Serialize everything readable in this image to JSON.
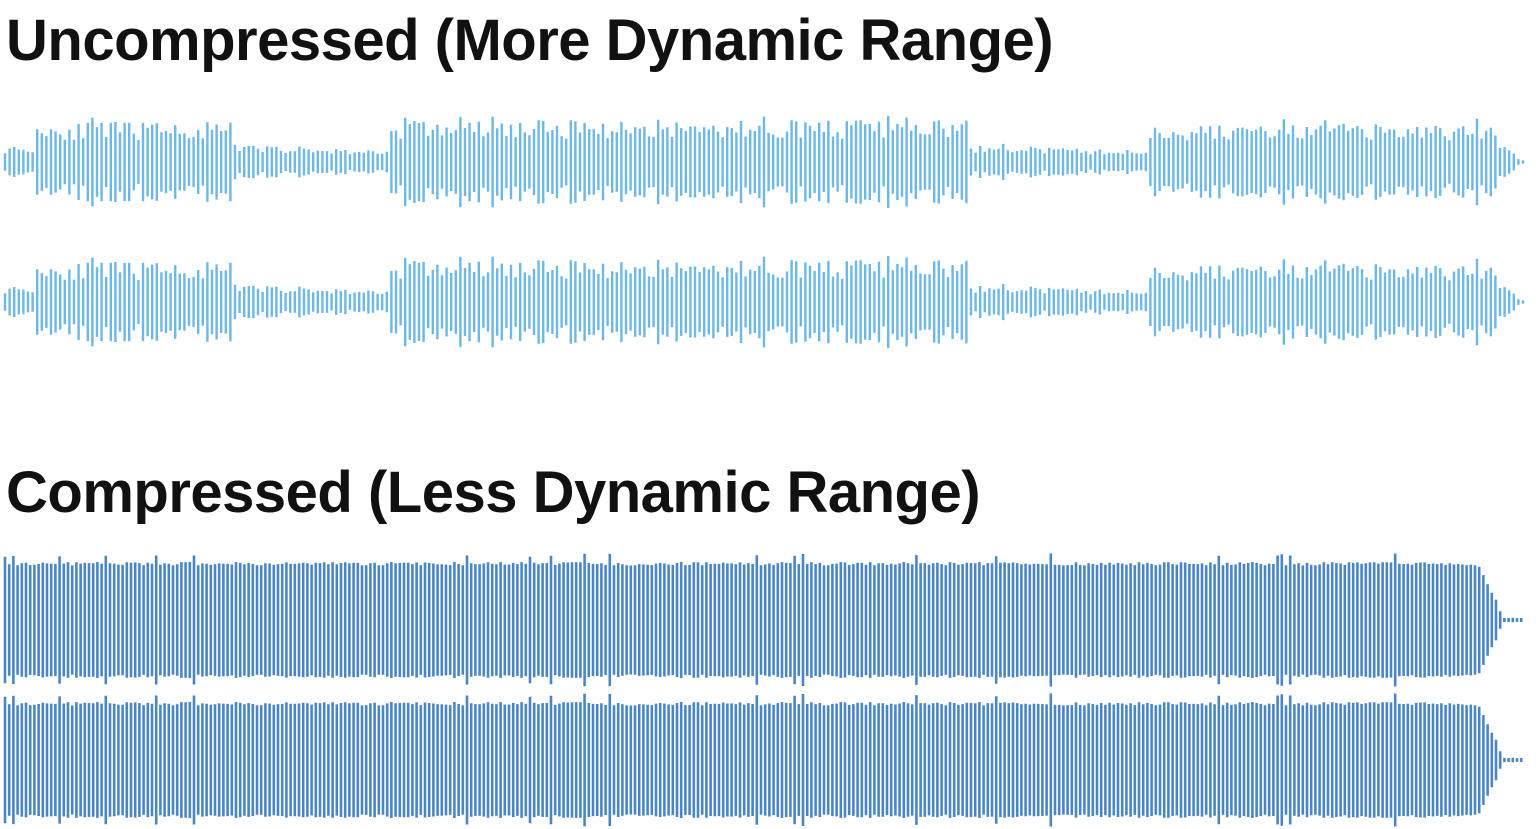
{
  "sections": [
    {
      "title": "Uncompressed (More Dynamic Range)"
    },
    {
      "title": "Compressed (Less Dynamic Range)"
    }
  ]
}
